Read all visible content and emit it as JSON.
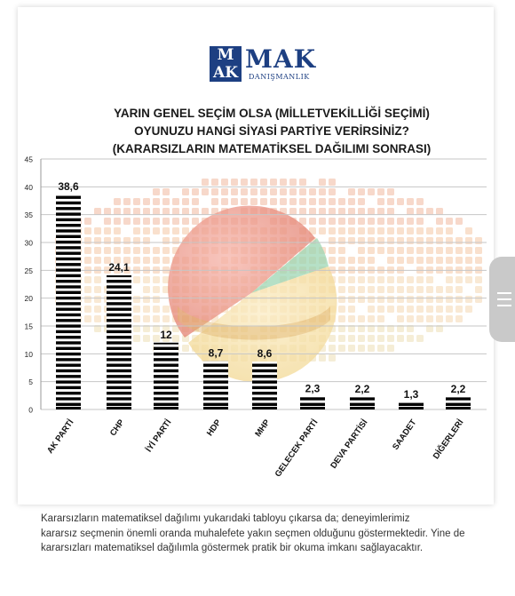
{
  "logo": {
    "box_top": "M",
    "box_bottom": "AK",
    "word": "MAK",
    "sub": "DANIŞMANLIK"
  },
  "title": {
    "line1": "YARIN GENEL SEÇİM OLSA (MİLLETVEKİLLİĞİ SEÇİMİ)",
    "line2": "OYUNUZU HANGİ SİYASİ PARTİYE VERİRSİNİZ?",
    "line3": "(KARARSIZLARIN MATEMATİKSEL DAĞILIMI SONRASI)"
  },
  "chart_data": {
    "type": "bar",
    "categories": [
      "AK PARTİ",
      "CHP",
      "İYİ PARTİ",
      "HDP",
      "MHP",
      "GELECEK PARTİ",
      "DEVA PARTİSİ",
      "SAADET",
      "DİĞERLERİ"
    ],
    "values": [
      38.6,
      24.1,
      12,
      8.7,
      8.6,
      2.3,
      2.2,
      1.3,
      2.2
    ],
    "data_labels": [
      "38,6",
      "24,1",
      "12",
      "8,7",
      "8,6",
      "2,3",
      "2,2",
      "1,3",
      "2,2"
    ],
    "ylim": [
      0,
      45
    ],
    "yticks": [
      0,
      5,
      10,
      15,
      20,
      25,
      30,
      35,
      40,
      45
    ],
    "ytick_labels": [
      "0",
      "5",
      "10",
      "15",
      "20",
      "25",
      "30",
      "35",
      "40",
      "45"
    ],
    "grid": true,
    "bar_style": "black-white-striped",
    "bar_color": "#000000"
  },
  "footer": {
    "line1": "Kararsızların matematiksel dağılımı yukarıdaki tabloyu çıkarsa da; deneyimlerimiz",
    "line2": "kararsız seçmenin önemli oranda muhalefete yakın seçmen olduğunu göstermektedir. Yine de",
    "line3": "kararsızları matematiksel dağılımla göstermek pratik bir okuma imkanı sağlayacaktır."
  }
}
